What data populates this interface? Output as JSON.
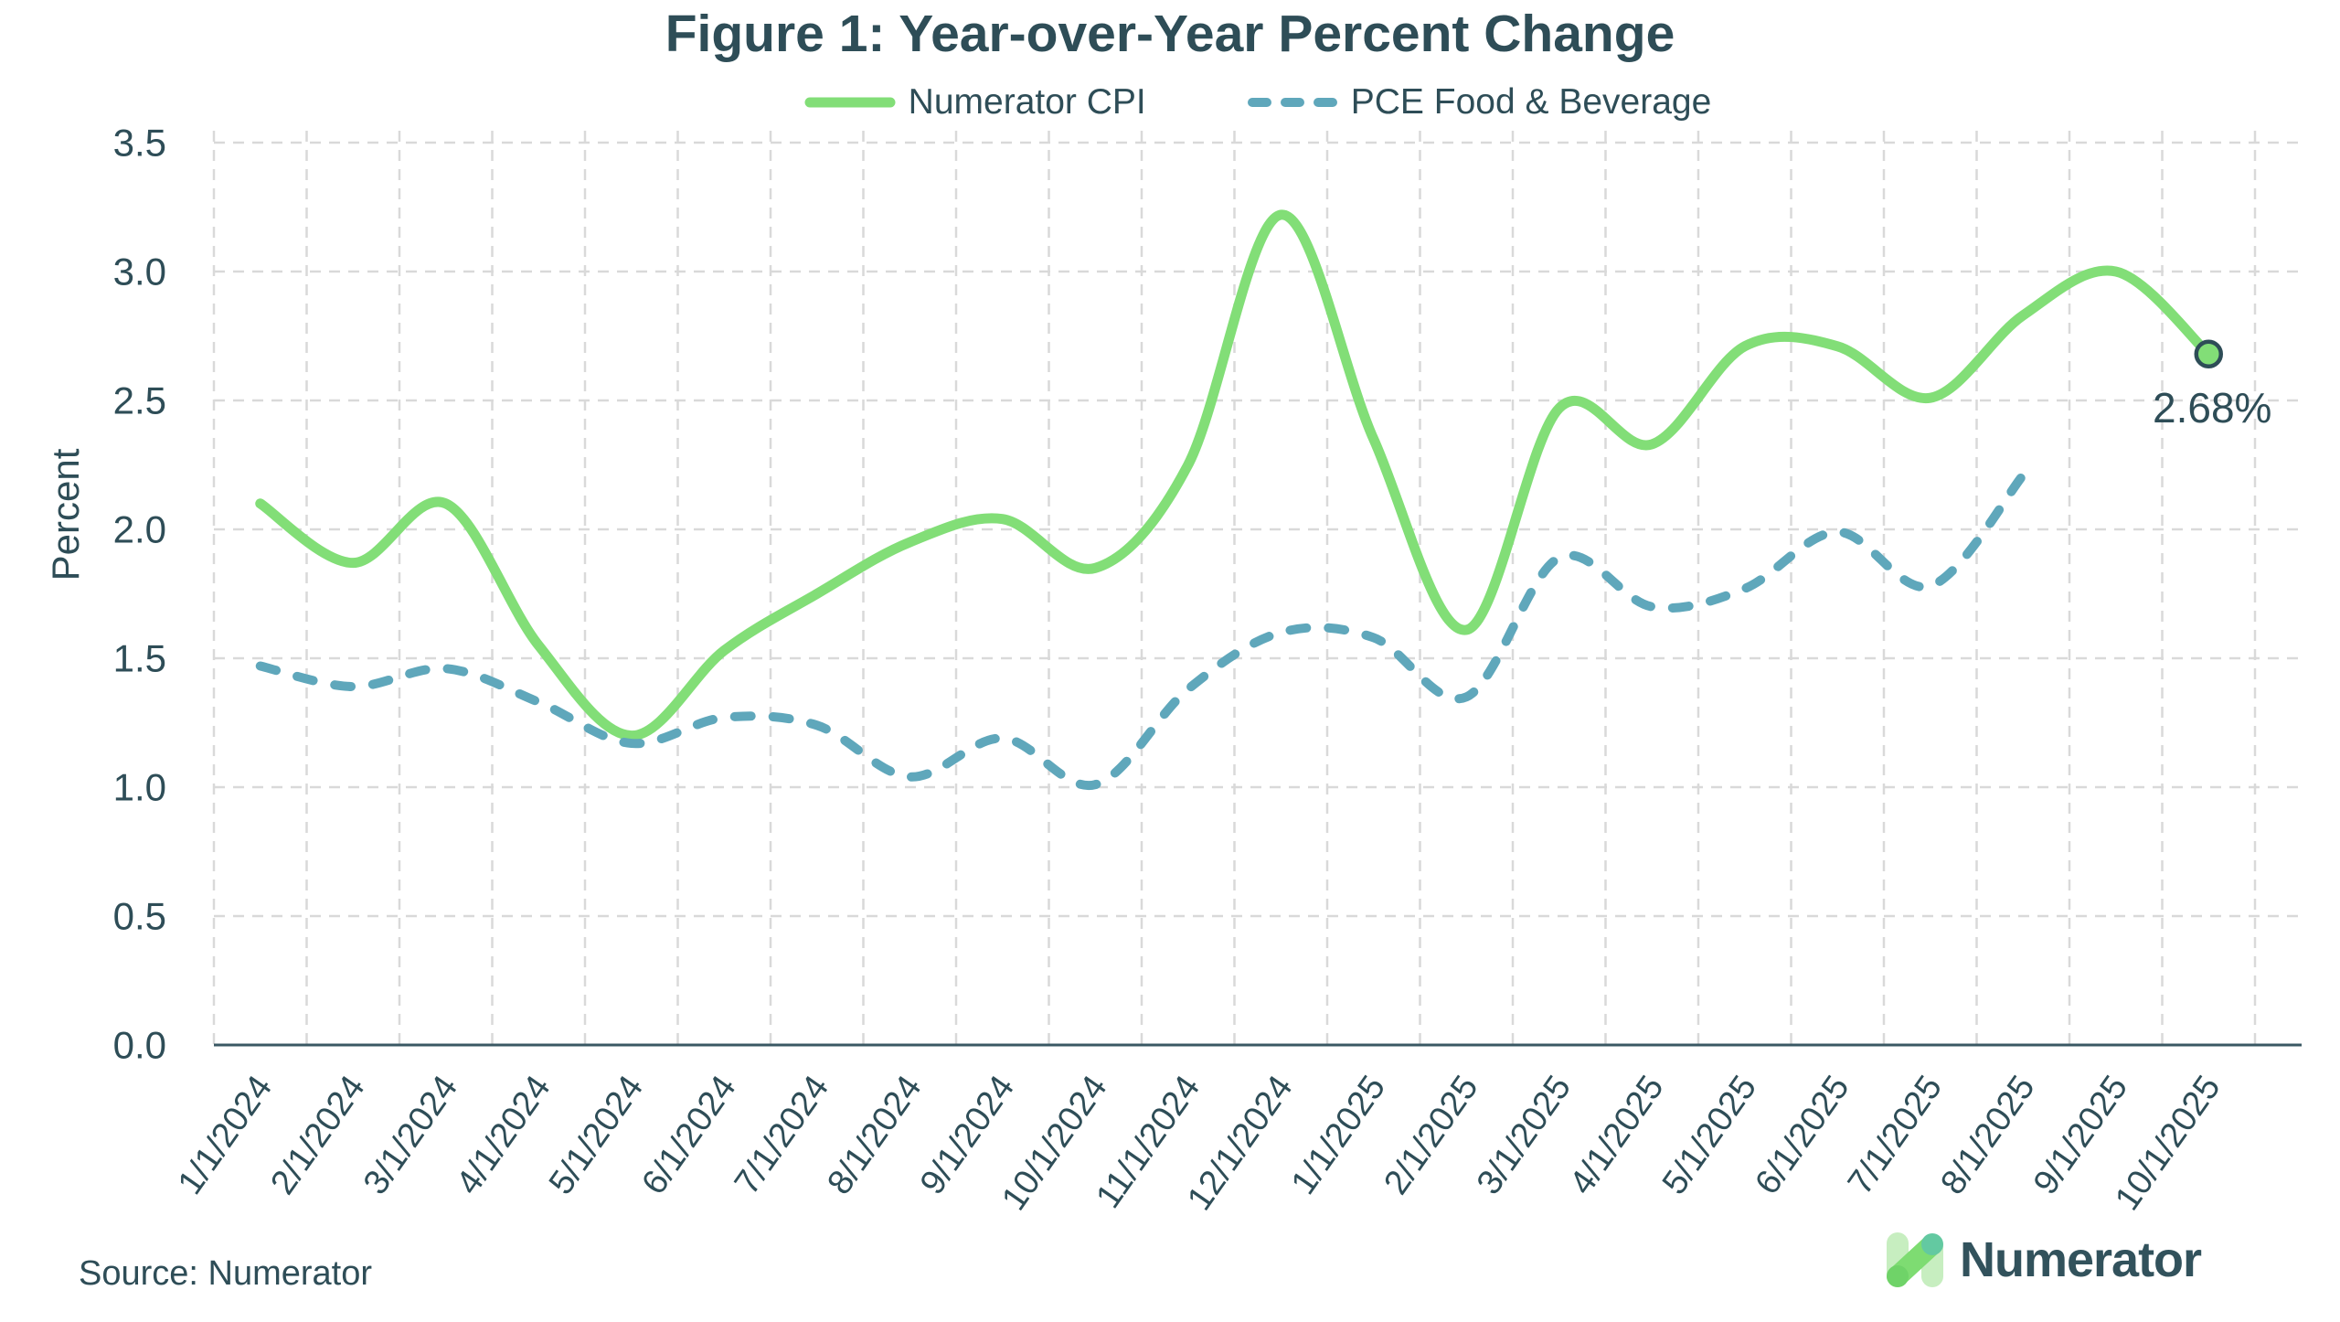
{
  "page": {
    "source_note": "Source: Numerator"
  },
  "logo": {
    "text": "Numerator"
  },
  "colors": {
    "cpi_green": "#82DE77",
    "pce_teal": "#5FA7BB",
    "text_dark": "#2E4D57",
    "grid_gray": "#D9D9D9",
    "axis_dark": "#3A5863",
    "marker_fill": "#82DE77",
    "marker_stroke": "#2E4D57"
  },
  "chart_data": {
    "type": "line",
    "title": "Figure 1: Year-over-Year Percent Change",
    "xlabel": "",
    "ylabel": "Percent",
    "ylim": [
      0,
      3.5
    ],
    "ytick_step": 0.5,
    "grid": true,
    "legend_position": "top",
    "categories": [
      "1/1/2024",
      "2/1/2024",
      "3/1/2024",
      "4/1/2024",
      "5/1/2024",
      "6/1/2024",
      "7/1/2024",
      "8/1/2024",
      "9/1/2024",
      "10/1/2024",
      "11/1/2024",
      "12/1/2024",
      "1/1/2025",
      "2/1/2025",
      "3/1/2025",
      "4/1/2025",
      "5/1/2025",
      "6/1/2025",
      "7/1/2025",
      "8/1/2025",
      "9/1/2025",
      "10/1/2025"
    ],
    "series": [
      {
        "name": "Numerator CPI",
        "style": "solid",
        "color": "#82DE77",
        "values": [
          2.1,
          1.87,
          2.1,
          1.55,
          1.2,
          1.53,
          1.75,
          1.95,
          2.04,
          1.85,
          2.25,
          3.22,
          2.35,
          1.61,
          2.47,
          2.33,
          2.71,
          2.71,
          2.51,
          2.83,
          3.0,
          2.68
        ]
      },
      {
        "name": "PCE Food & Beverage",
        "style": "dashed",
        "color": "#5FA7BB",
        "values": [
          1.47,
          1.39,
          1.46,
          1.33,
          1.17,
          1.27,
          1.24,
          1.04,
          1.19,
          1.01,
          1.38,
          1.6,
          1.58,
          1.35,
          1.89,
          1.7,
          1.77,
          1.99,
          1.78,
          2.21,
          null,
          null
        ]
      }
    ],
    "annotation": {
      "text": "2.68%",
      "series_index": 0,
      "point_index": 21,
      "value": 2.68
    }
  }
}
